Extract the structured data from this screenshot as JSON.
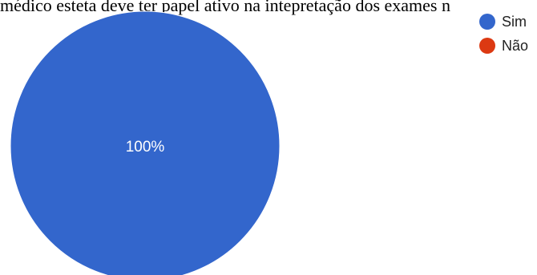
{
  "title": "médico esteta deve ter papel ativo na intepretação dos exames n",
  "chart_data": {
    "type": "pie",
    "categories": [
      "Sim",
      "Não"
    ],
    "values": [
      100,
      0
    ],
    "colors": [
      "#3366cc",
      "#dc3912"
    ],
    "slice_labels": [
      "100%",
      ""
    ],
    "legend": "top-right"
  }
}
